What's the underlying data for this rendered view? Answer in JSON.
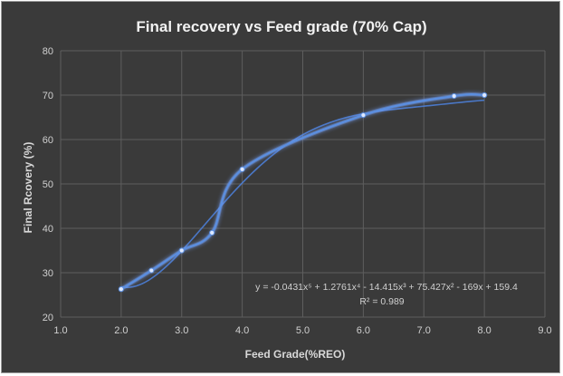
{
  "chart_data": {
    "type": "scatter",
    "title": "Final recovery vs Feed grade (70% Cap)",
    "xlabel": "Feed Grade(%REO)",
    "ylabel": "Final Rcovery (%)",
    "xlim": [
      1.0,
      9.0
    ],
    "ylim": [
      20,
      80
    ],
    "x_ticks": [
      "1.0",
      "2.0",
      "3.0",
      "4.0",
      "5.0",
      "6.0",
      "7.0",
      "8.0",
      "9.0"
    ],
    "y_ticks": [
      "20",
      "30",
      "40",
      "50",
      "60",
      "70",
      "80"
    ],
    "grid": true,
    "series": [
      {
        "name": "Final recovery",
        "x": [
          2.0,
          2.5,
          3.0,
          3.5,
          4.0,
          6.0,
          7.5,
          8.0
        ],
        "y": [
          26.3,
          30.5,
          35.0,
          39.0,
          53.3,
          65.5,
          69.8,
          70.0
        ],
        "smoothed": true
      }
    ],
    "trendline": {
      "type": "polynomial",
      "order": 5,
      "equation": "y = -0.0431x⁵ + 1.2761x⁴ - 14.415x³ + 75.427x² - 169x + 159.4",
      "r_squared": "R² = 0.989",
      "coefficients": [
        -0.0431,
        1.2761,
        -14.415,
        75.427,
        -169,
        159.4
      ],
      "x_range": [
        2.0,
        8.0
      ]
    },
    "colors": {
      "background": "#3a3a3a",
      "series": "#5b8fe0",
      "glow": "#7aa6ff",
      "trendline": "#4d7ed6"
    }
  }
}
